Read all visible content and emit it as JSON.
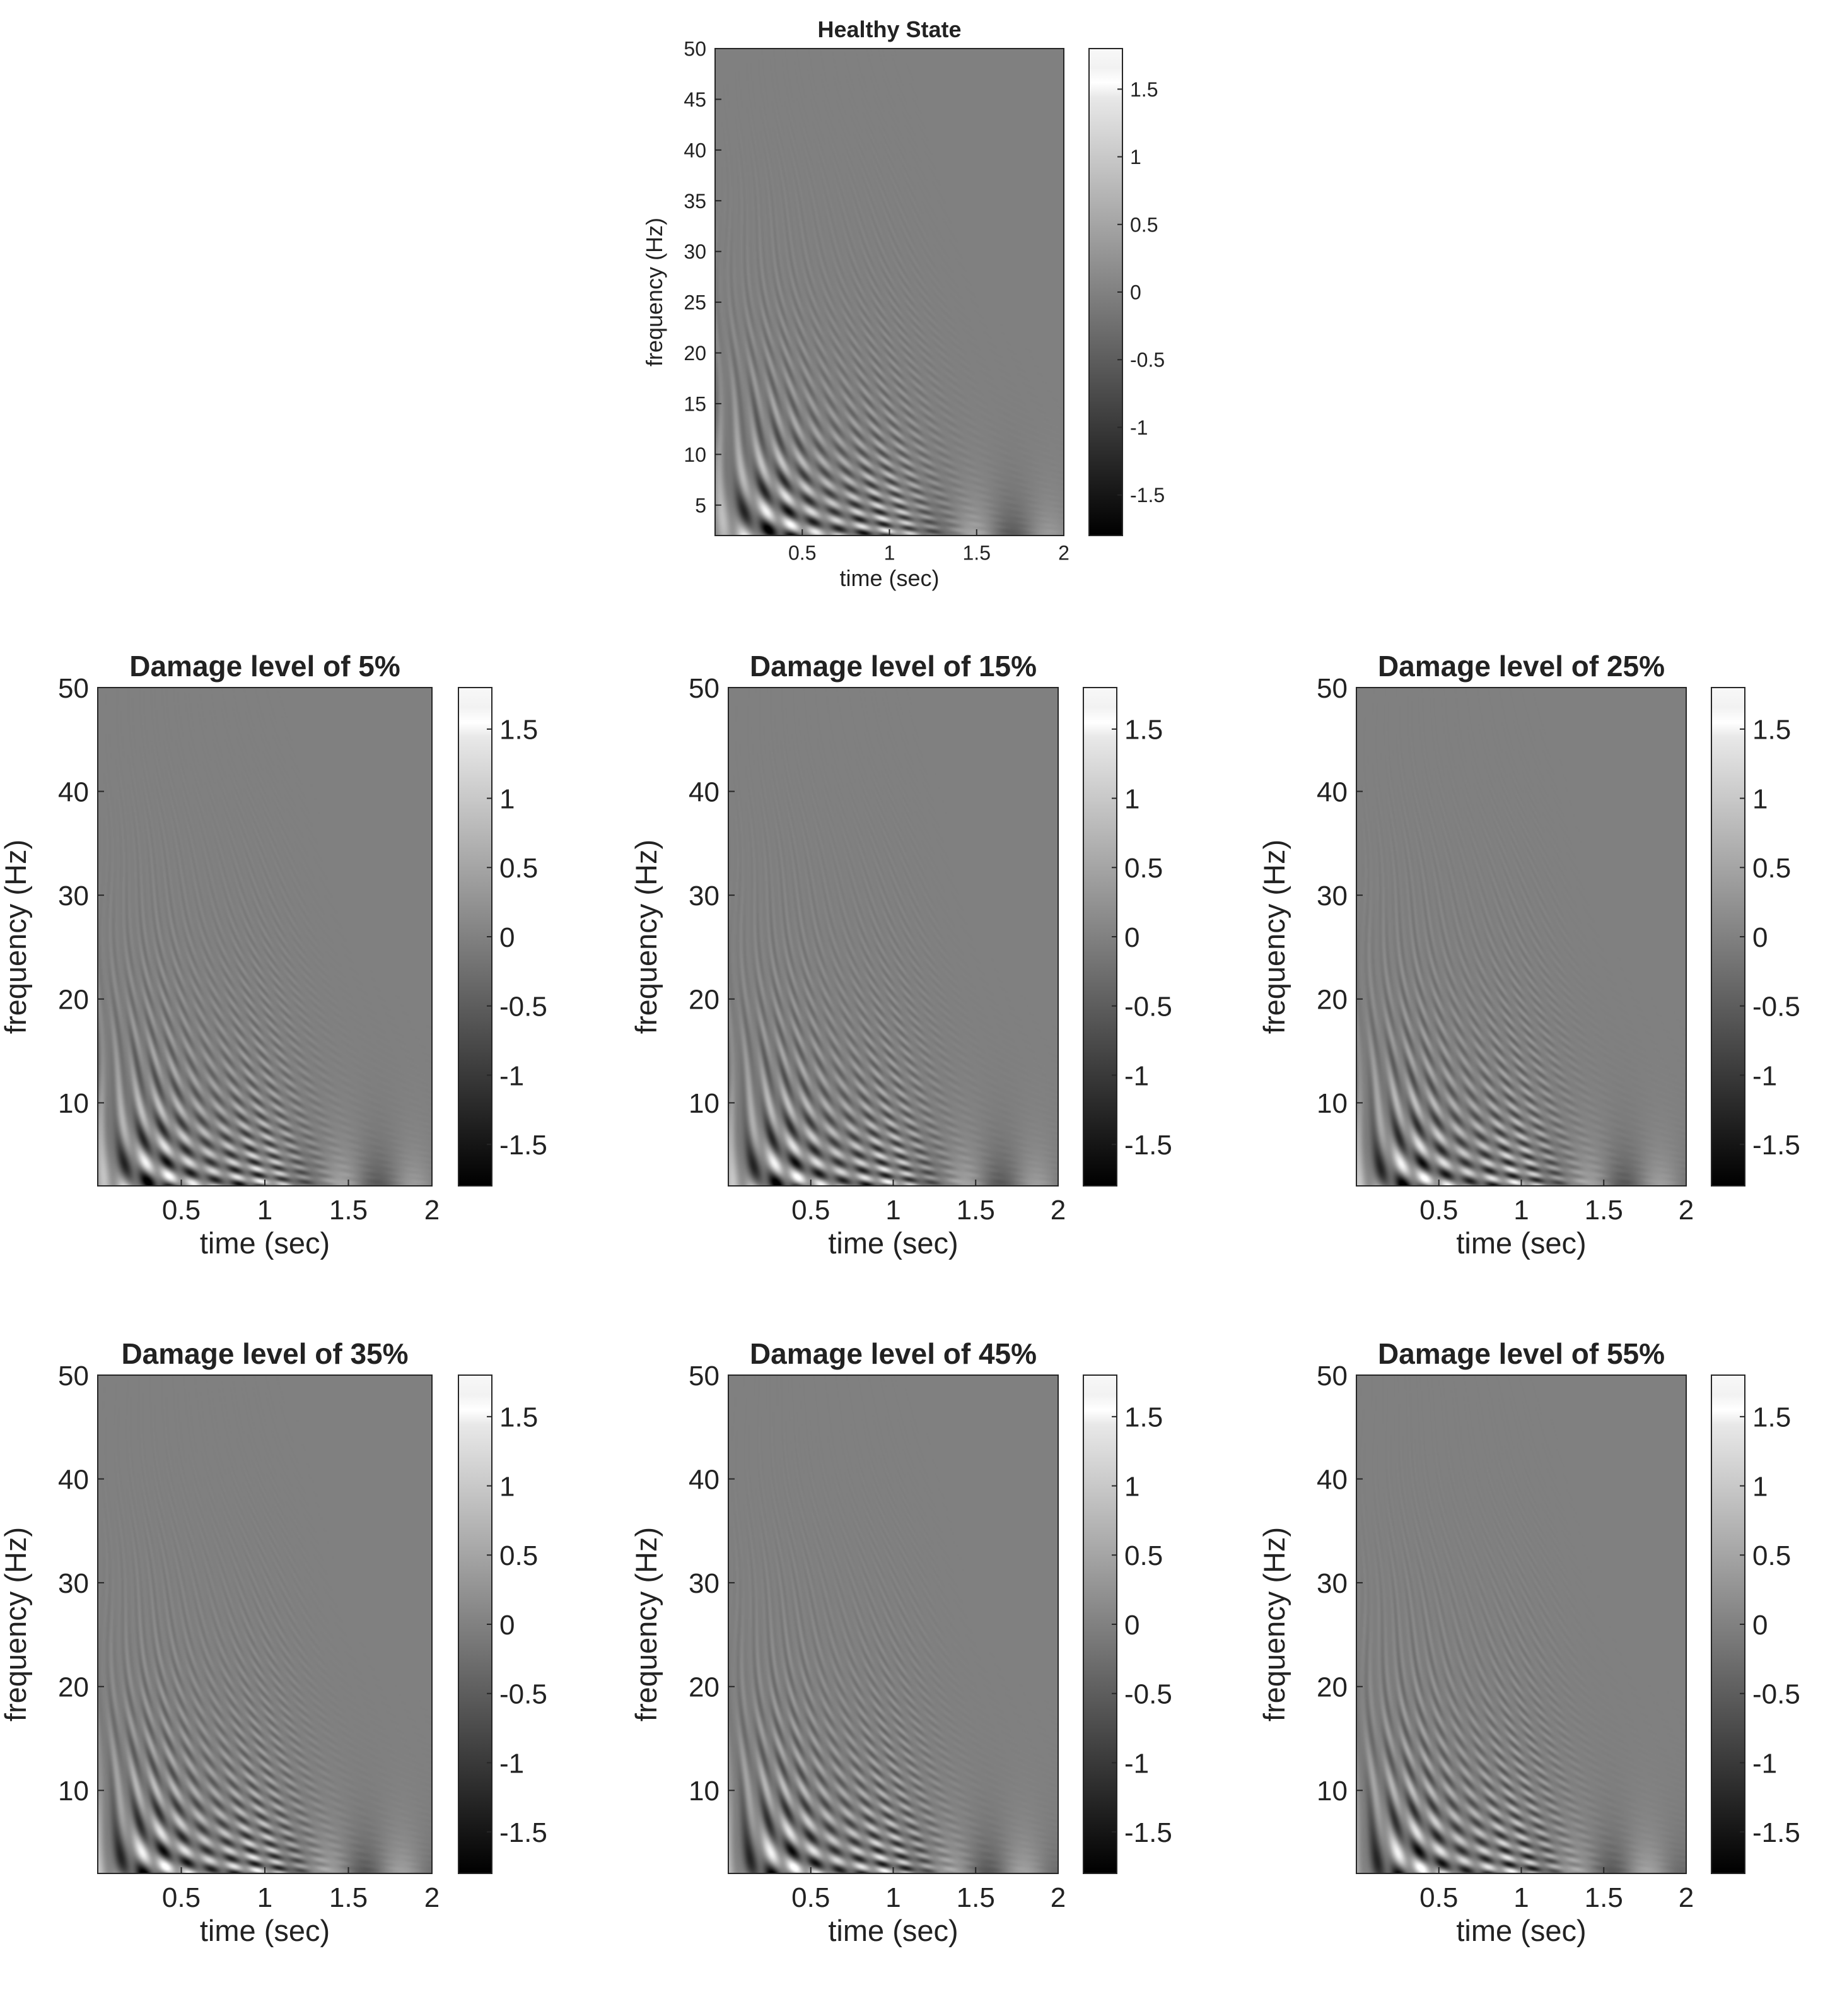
{
  "chart_data": [
    {
      "type": "heatmap",
      "title": "Healthy State",
      "xlabel": "time (sec)",
      "ylabel": "frequency (Hz)",
      "xlim": [
        0,
        2
      ],
      "ylim": [
        2,
        50
      ],
      "xticks": [
        0.5,
        1,
        1.5,
        2
      ],
      "yticks": [
        5,
        10,
        15,
        20,
        25,
        30,
        35,
        40,
        45,
        50
      ],
      "colormap": "gray",
      "clim": [
        -1.8,
        1.8
      ],
      "colorbar_ticks": [
        -1.5,
        -1,
        -0.5,
        0,
        0.5,
        1,
        1.5
      ]
    },
    {
      "type": "heatmap",
      "title": "Damage level of 5%",
      "xlabel": "time (sec)",
      "ylabel": "frequency (Hz)",
      "xlim": [
        0,
        2
      ],
      "ylim": [
        2,
        50
      ],
      "xticks": [
        0.5,
        1,
        1.5,
        2
      ],
      "yticks": [
        10,
        20,
        30,
        40,
        50
      ],
      "colormap": "gray",
      "clim": [
        -1.8,
        1.8
      ],
      "colorbar_ticks": [
        -1.5,
        -1,
        -0.5,
        0,
        0.5,
        1,
        1.5
      ]
    },
    {
      "type": "heatmap",
      "title": "Damage level of 15%",
      "xlabel": "time (sec)",
      "ylabel": "frequency (Hz)",
      "xlim": [
        0,
        2
      ],
      "ylim": [
        2,
        50
      ],
      "xticks": [
        0.5,
        1,
        1.5,
        2
      ],
      "yticks": [
        10,
        20,
        30,
        40,
        50
      ],
      "colormap": "gray",
      "clim": [
        -1.8,
        1.8
      ],
      "colorbar_ticks": [
        -1.5,
        -1,
        -0.5,
        0,
        0.5,
        1,
        1.5
      ]
    },
    {
      "type": "heatmap",
      "title": "Damage level of 25%",
      "xlabel": "time (sec)",
      "ylabel": "frequency (Hz)",
      "xlim": [
        0,
        2
      ],
      "ylim": [
        2,
        50
      ],
      "xticks": [
        0.5,
        1,
        1.5,
        2
      ],
      "yticks": [
        10,
        20,
        30,
        40,
        50
      ],
      "colormap": "gray",
      "clim": [
        -1.8,
        1.8
      ],
      "colorbar_ticks": [
        -1.5,
        -1,
        -0.5,
        0,
        0.5,
        1,
        1.5
      ]
    },
    {
      "type": "heatmap",
      "title": "Damage level of 35%",
      "xlabel": "time (sec)",
      "ylabel": "frequency (Hz)",
      "xlim": [
        0,
        2
      ],
      "ylim": [
        2,
        50
      ],
      "xticks": [
        0.5,
        1,
        1.5,
        2
      ],
      "yticks": [
        10,
        20,
        30,
        40,
        50
      ],
      "colormap": "gray",
      "clim": [
        -1.8,
        1.8
      ],
      "colorbar_ticks": [
        -1.5,
        -1,
        -0.5,
        0,
        0.5,
        1,
        1.5
      ]
    },
    {
      "type": "heatmap",
      "title": "Damage level of 45%",
      "xlabel": "time (sec)",
      "ylabel": "frequency (Hz)",
      "xlim": [
        0,
        2
      ],
      "ylim": [
        2,
        50
      ],
      "xticks": [
        0.5,
        1,
        1.5,
        2
      ],
      "yticks": [
        10,
        20,
        30,
        40,
        50
      ],
      "colormap": "gray",
      "clim": [
        -1.8,
        1.8
      ],
      "colorbar_ticks": [
        -1.5,
        -1,
        -0.5,
        0,
        0.5,
        1,
        1.5
      ]
    },
    {
      "type": "heatmap",
      "title": "Damage level of 55%",
      "xlabel": "time (sec)",
      "ylabel": "frequency (Hz)",
      "xlim": [
        0,
        2
      ],
      "ylim": [
        2,
        50
      ],
      "xticks": [
        0.5,
        1,
        1.5,
        2
      ],
      "yticks": [
        10,
        20,
        30,
        40,
        50
      ],
      "colormap": "gray",
      "clim": [
        -1.8,
        1.8
      ],
      "colorbar_ticks": [
        -1.5,
        -1,
        -0.5,
        0,
        0.5,
        1,
        1.5
      ]
    }
  ]
}
